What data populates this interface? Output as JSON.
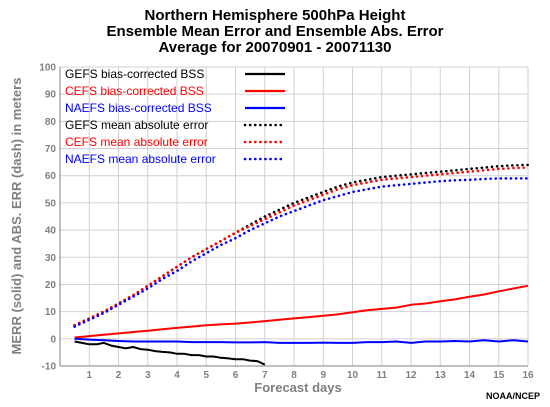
{
  "titles": {
    "line1": "Northern Hemisphere 500hPa Height",
    "line2": "Ensemble Mean Error and Ensemble Abs. Error",
    "line3": "Average for 20070901 - 20071130"
  },
  "footer": "NOAA/NCEP",
  "chart_data": {
    "type": "line",
    "xlabel": "Forecast days",
    "ylabel": "MERR (solid) and ABS. ERR (dash) in meters",
    "xlim": [
      0,
      16
    ],
    "ylim": [
      -10,
      100
    ],
    "xticks": [
      "1",
      "2",
      "3",
      "4",
      "5",
      "6",
      "7",
      "8",
      "9",
      "10",
      "11",
      "12",
      "13",
      "14",
      "15",
      "16"
    ],
    "yticks": [
      "-10",
      "0",
      "10",
      "20",
      "30",
      "40",
      "50",
      "60",
      "70",
      "80",
      "90",
      "100"
    ],
    "grid": true,
    "legend_position": "top-left",
    "series": [
      {
        "name": "GEFS bias-corrected BSS",
        "color": "#000000",
        "style": "solid",
        "x": [
          0.5,
          0.75,
          1,
          1.25,
          1.5,
          1.75,
          2,
          2.25,
          2.5,
          2.75,
          3,
          3.25,
          3.5,
          3.75,
          4,
          4.25,
          4.5,
          4.75,
          5,
          5.25,
          5.5,
          5.75,
          6,
          6.25,
          6.5,
          6.75,
          7
        ],
        "y": [
          -1,
          -1.5,
          -2,
          -2,
          -1.5,
          -2.5,
          -3,
          -3.5,
          -3,
          -3.8,
          -4,
          -4.5,
          -4.8,
          -5,
          -5.5,
          -5.5,
          -6,
          -6,
          -6.5,
          -6.5,
          -7,
          -7.2,
          -7.5,
          -7.5,
          -8,
          -8.2,
          -9.5
        ]
      },
      {
        "name": "CEFS bias-corrected BSS",
        "color": "#ff0000",
        "style": "solid",
        "x": [
          0.5,
          1,
          1.5,
          2,
          2.5,
          3,
          3.5,
          4,
          4.5,
          5,
          5.5,
          6,
          6.5,
          7,
          7.5,
          8,
          8.5,
          9,
          9.5,
          10,
          10.5,
          11,
          11.5,
          12,
          12.5,
          13,
          13.5,
          14,
          14.5,
          15,
          15.5,
          16
        ],
        "y": [
          0.5,
          1,
          1.5,
          2,
          2.5,
          3,
          3.5,
          4,
          4.5,
          5,
          5.3,
          5.6,
          6,
          6.5,
          7,
          7.5,
          8,
          8.5,
          9,
          9.8,
          10.5,
          11,
          11.5,
          12.5,
          13,
          13.8,
          14.5,
          15.5,
          16.3,
          17.5,
          18.5,
          19.5
        ]
      },
      {
        "name": "NAEFS bias-corrected BSS",
        "color": "#0000ff",
        "style": "solid",
        "x": [
          0.5,
          1,
          1.5,
          2,
          2.5,
          3,
          3.5,
          4,
          4.5,
          5,
          5.5,
          6,
          6.5,
          7,
          7.5,
          8,
          8.5,
          9,
          9.5,
          10,
          10.5,
          11,
          11.5,
          12,
          12.5,
          13,
          13.5,
          14,
          14.5,
          15,
          15.5,
          16
        ],
        "y": [
          0,
          -0.3,
          -0.5,
          -0.8,
          -1,
          -1,
          -1,
          -1,
          -1.2,
          -1.2,
          -1.2,
          -1.3,
          -1.3,
          -1.2,
          -1.5,
          -1.5,
          -1.5,
          -1.4,
          -1.5,
          -1.5,
          -1.2,
          -1.2,
          -1,
          -1.5,
          -1,
          -1,
          -0.8,
          -1,
          -0.5,
          -1,
          -0.5,
          -1
        ]
      },
      {
        "name": "GEFS mean absolute error",
        "color": "#000000",
        "style": "dotted",
        "x": [
          0.5,
          1,
          1.5,
          2,
          2.5,
          3,
          3.5,
          4,
          4.5,
          5,
          5.5,
          6,
          6.5,
          7,
          7.5,
          8,
          8.5,
          9,
          9.5,
          10,
          10.5,
          11,
          11.5,
          12,
          12.5,
          13,
          13.5,
          14,
          14.5,
          15,
          15.5,
          16
        ],
        "y": [
          5,
          7.5,
          10,
          13,
          16,
          19.5,
          23,
          26.5,
          30,
          33,
          36,
          39,
          42,
          45,
          47.5,
          50,
          52,
          54,
          56,
          57.5,
          58.5,
          59.5,
          60,
          60.5,
          61,
          61.5,
          62,
          62.5,
          63,
          63.5,
          63.8,
          64
        ]
      },
      {
        "name": "CEFS mean absolute error",
        "color": "#ff0000",
        "style": "dotted",
        "x": [
          0.5,
          1,
          1.5,
          2,
          2.5,
          3,
          3.5,
          4,
          4.5,
          5,
          5.5,
          6,
          6.5,
          7,
          7.5,
          8,
          8.5,
          9,
          9.5,
          10,
          10.5,
          11,
          11.5,
          12,
          12.5,
          13,
          13.5,
          14,
          14.5,
          15,
          15.5,
          16
        ],
        "y": [
          5,
          7.5,
          10,
          13,
          16,
          19.5,
          23,
          26.5,
          30,
          33,
          36,
          39,
          41.5,
          44,
          46.5,
          49,
          51,
          53,
          55,
          56.5,
          57.5,
          58.5,
          59,
          59.5,
          60,
          60.5,
          61,
          61.5,
          62,
          62.5,
          62.8,
          63
        ]
      },
      {
        "name": "NAEFS mean absolute error",
        "color": "#0000ff",
        "style": "dotted",
        "x": [
          0.5,
          1,
          1.5,
          2,
          2.5,
          3,
          3.5,
          4,
          4.5,
          5,
          5.5,
          6,
          6.5,
          7,
          7.5,
          8,
          8.5,
          9,
          9.5,
          10,
          10.5,
          11,
          11.5,
          12,
          12.5,
          13,
          13.5,
          14,
          14.5,
          15,
          15.5,
          16
        ],
        "y": [
          4.5,
          7,
          9.5,
          12.5,
          15.5,
          18.5,
          22,
          25,
          28.5,
          31.5,
          34.5,
          37,
          40,
          42.5,
          45,
          47,
          49,
          51,
          52.5,
          54,
          55,
          56,
          56.5,
          57,
          57.5,
          58,
          58.3,
          58.5,
          58.8,
          59,
          59,
          59
        ]
      }
    ]
  }
}
